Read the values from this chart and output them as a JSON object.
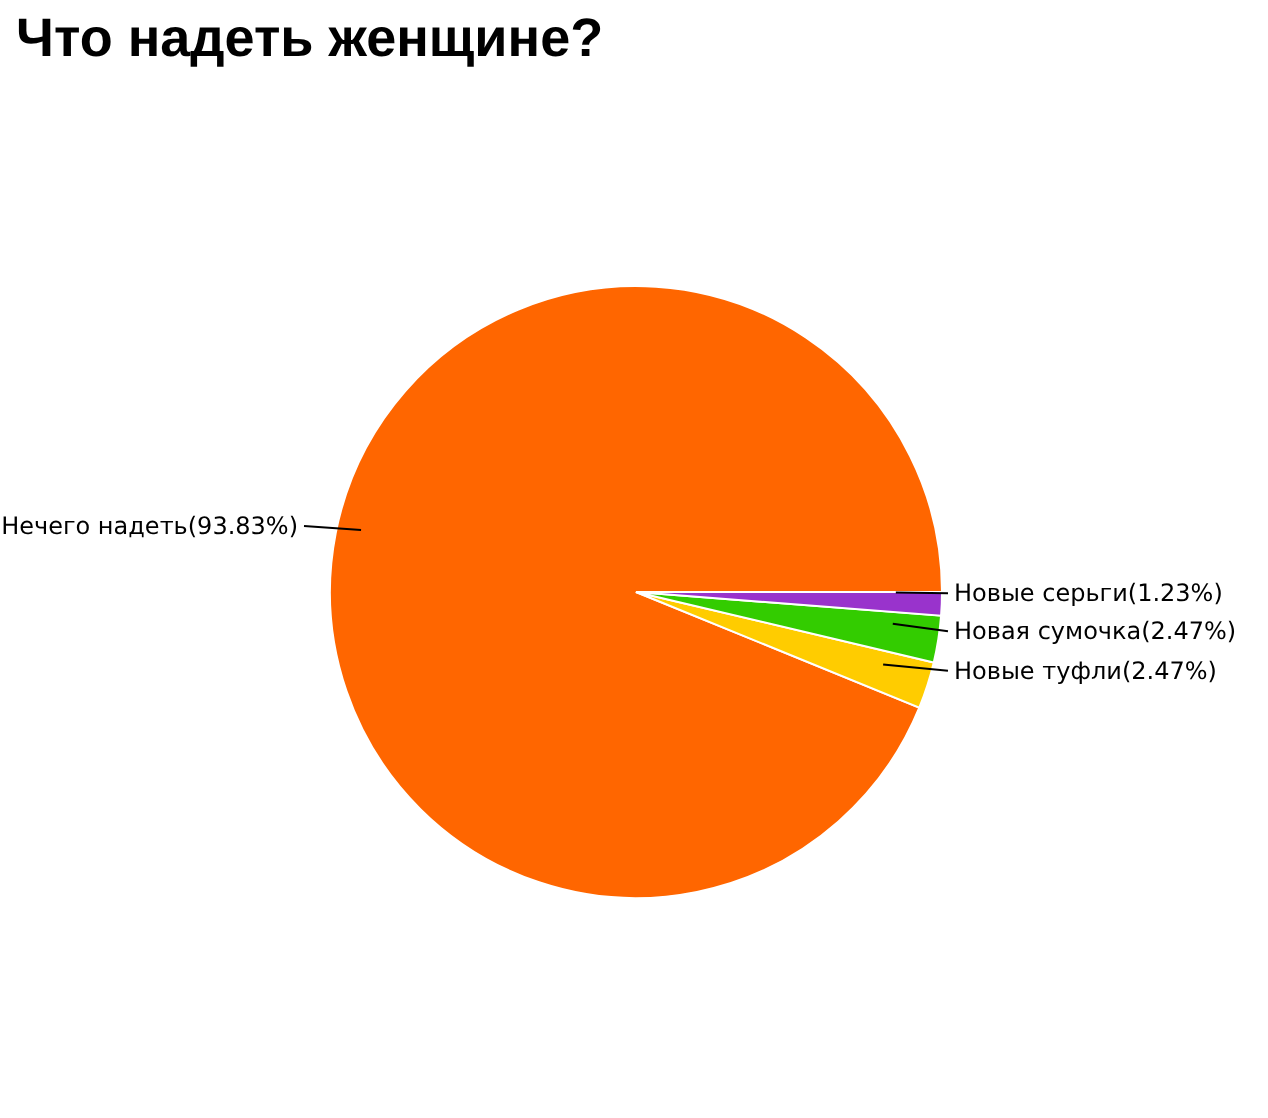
{
  "chart_data": {
    "type": "pie",
    "title": "Что надеть женщине?",
    "categories": [
      "Нечего надеть",
      "Новые туфли",
      "Новая сумочка",
      "Новые серьги"
    ],
    "values": [
      93.83,
      2.47,
      2.47,
      1.23
    ],
    "colors": [
      "#ff6600",
      "#ffcc00",
      "#33cc00",
      "#9933cc"
    ],
    "value_labels": [
      "(93.83%)",
      "(2.47%)",
      "(2.47%)",
      "(1.23%)"
    ],
    "legend": false
  }
}
